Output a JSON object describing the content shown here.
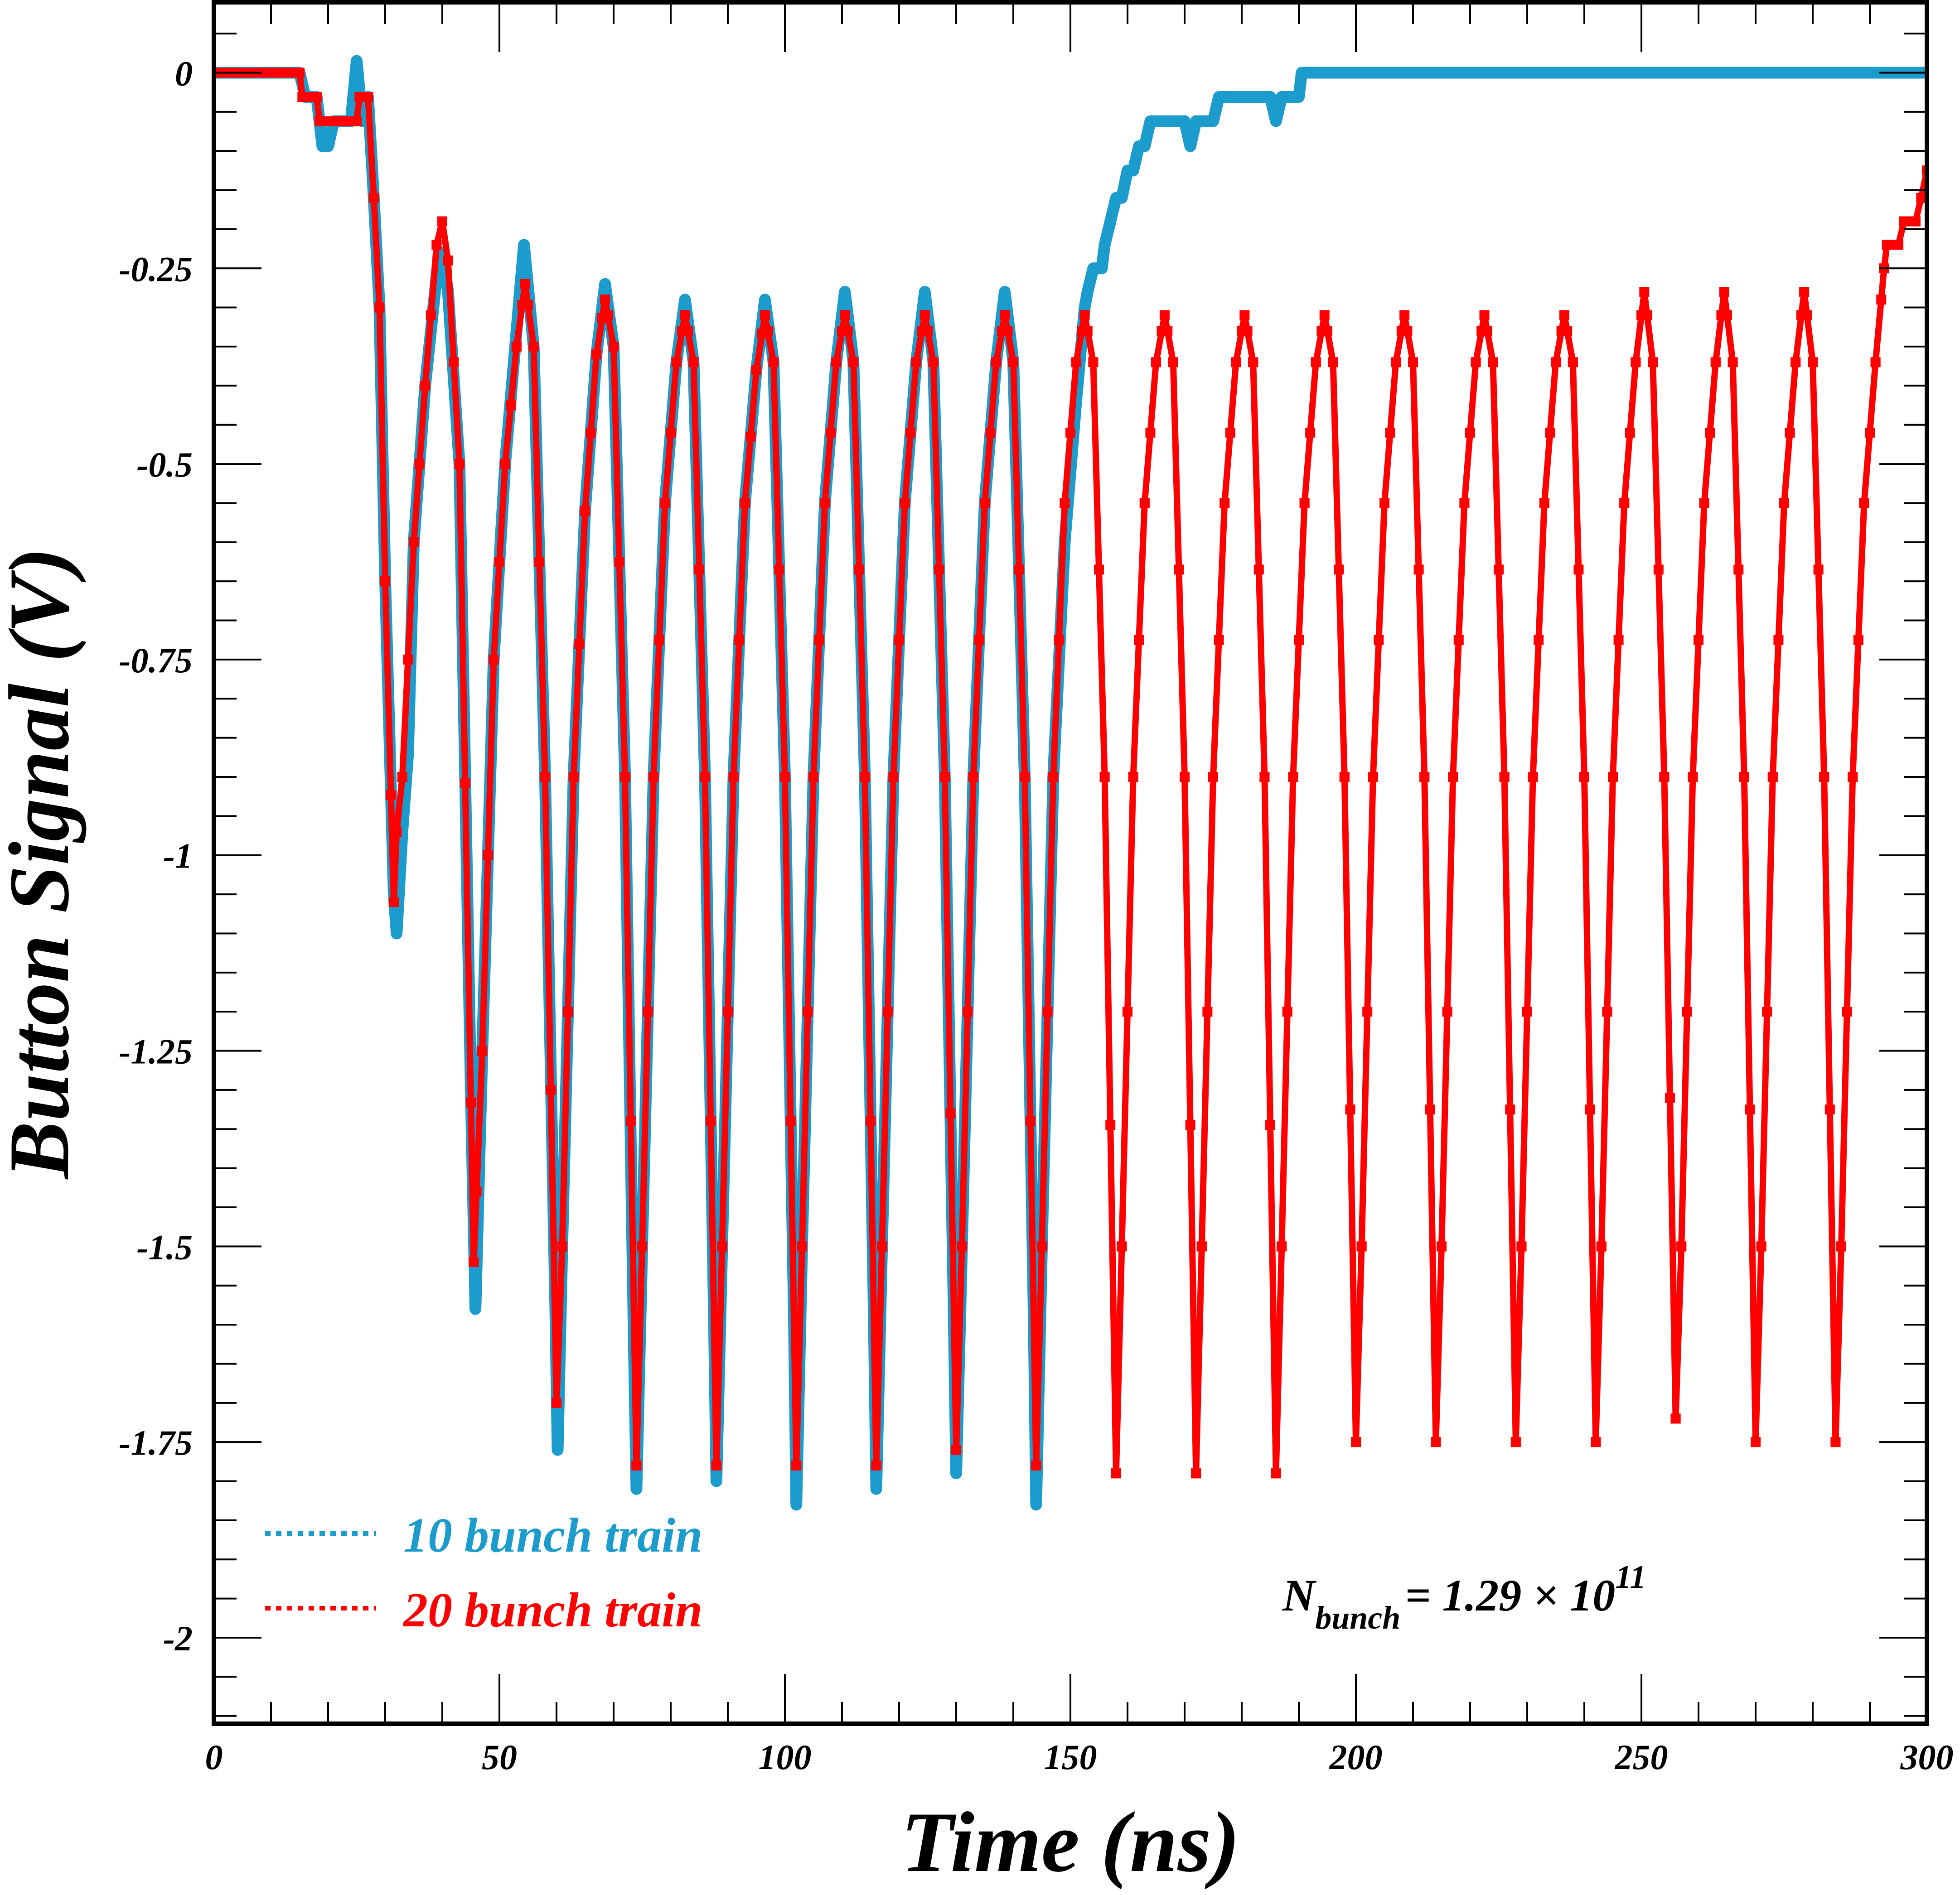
{
  "chart_data": {
    "type": "line",
    "title": "",
    "xlabel": "Time (ns)",
    "ylabel": "Button Signal (V)",
    "xlim": [
      0,
      300
    ],
    "ylim": [
      -2.11,
      0.09
    ],
    "x_ticks": [
      0,
      50,
      100,
      150,
      200,
      250,
      300
    ],
    "x_tick_labels": [
      "0",
      "50",
      "100",
      "150",
      "200",
      "250",
      "300"
    ],
    "x_minor_step": 10,
    "y_ticks": [
      0,
      -0.25,
      -0.5,
      -0.75,
      -1,
      -1.25,
      -1.5,
      -1.75,
      -2
    ],
    "y_tick_labels": [
      "0",
      "-0.25",
      "-0.5",
      "-0.75",
      "-1",
      "-1.25",
      "-1.5",
      "-1.75",
      "-2"
    ],
    "y_minor_step": 0.05,
    "grid": false,
    "legend": {
      "placement": "bottom-left",
      "entries": [
        {
          "label": "10 bunch train",
          "color": "#1c9bcd"
        },
        {
          "label": "20 bunch train",
          "color": "#ff0000"
        }
      ]
    },
    "annotation": {
      "symbol": "N",
      "subscript": "bunch",
      "text": "= 1.29 × 10",
      "superscript": "11",
      "placement": "bottom-right"
    },
    "series": [
      {
        "name": "10 bunch train",
        "color": "#1c9bcd",
        "markers": false,
        "points": [
          [
            0,
            0
          ],
          [
            15,
            0
          ],
          [
            16,
            -0.031
          ],
          [
            18,
            -0.031
          ],
          [
            19,
            -0.094
          ],
          [
            20,
            -0.094
          ],
          [
            21,
            -0.062
          ],
          [
            24,
            -0.062
          ],
          [
            25,
            0.015
          ],
          [
            26,
            -0.062
          ],
          [
            27,
            -0.031
          ],
          [
            28,
            -0.16
          ],
          [
            29,
            -0.3
          ],
          [
            30,
            -0.65
          ],
          [
            31.5,
            -1.05
          ],
          [
            32,
            -1.1
          ],
          [
            33,
            -0.97
          ],
          [
            34,
            -0.87
          ],
          [
            35,
            -0.6
          ],
          [
            37,
            -0.4
          ],
          [
            39,
            -0.26
          ],
          [
            40,
            -0.23
          ],
          [
            41,
            -0.28
          ],
          [
            43,
            -0.5
          ],
          [
            45,
            -1.3
          ],
          [
            45.8,
            -1.58
          ],
          [
            47,
            -1.25
          ],
          [
            49,
            -0.75
          ],
          [
            51,
            -0.5
          ],
          [
            53,
            -0.33
          ],
          [
            54.3,
            -0.22
          ],
          [
            56,
            -0.35
          ],
          [
            58,
            -0.9
          ],
          [
            59.8,
            -1.58
          ],
          [
            60.2,
            -1.76
          ],
          [
            61,
            -1.5
          ],
          [
            63,
            -0.9
          ],
          [
            65,
            -0.56
          ],
          [
            67,
            -0.36
          ],
          [
            68.5,
            -0.27
          ],
          [
            70,
            -0.35
          ],
          [
            72,
            -0.9
          ],
          [
            73.5,
            -1.6
          ],
          [
            74,
            -1.81
          ],
          [
            75,
            -1.5
          ],
          [
            77,
            -0.9
          ],
          [
            79,
            -0.55
          ],
          [
            81,
            -0.37
          ],
          [
            82.5,
            -0.29
          ],
          [
            84,
            -0.37
          ],
          [
            86,
            -0.9
          ],
          [
            87.6,
            -1.6
          ],
          [
            88,
            -1.8
          ],
          [
            89,
            -1.5
          ],
          [
            91,
            -0.9
          ],
          [
            93,
            -0.55
          ],
          [
            95,
            -0.38
          ],
          [
            96.5,
            -0.29
          ],
          [
            98,
            -0.37
          ],
          [
            100,
            -0.9
          ],
          [
            101.6,
            -1.6
          ],
          [
            102,
            -1.83
          ],
          [
            103,
            -1.5
          ],
          [
            105,
            -0.9
          ],
          [
            107,
            -0.55
          ],
          [
            109,
            -0.37
          ],
          [
            110.5,
            -0.28
          ],
          [
            112,
            -0.37
          ],
          [
            114,
            -0.9
          ],
          [
            115.6,
            -1.6
          ],
          [
            116,
            -1.81
          ],
          [
            117,
            -1.5
          ],
          [
            119,
            -0.9
          ],
          [
            121,
            -0.55
          ],
          [
            123,
            -0.37
          ],
          [
            124.5,
            -0.28
          ],
          [
            126,
            -0.37
          ],
          [
            128,
            -0.9
          ],
          [
            129.6,
            -1.6
          ],
          [
            130,
            -1.79
          ],
          [
            131,
            -1.5
          ],
          [
            133,
            -0.9
          ],
          [
            135,
            -0.55
          ],
          [
            137,
            -0.37
          ],
          [
            138.5,
            -0.28
          ],
          [
            140,
            -0.37
          ],
          [
            142,
            -0.9
          ],
          [
            143.6,
            -1.6
          ],
          [
            144,
            -1.83
          ],
          [
            145,
            -1.5
          ],
          [
            147,
            -0.9
          ],
          [
            149,
            -0.6
          ],
          [
            151,
            -0.42
          ],
          [
            152.5,
            -0.3
          ],
          [
            153,
            -0.28
          ],
          [
            154,
            -0.25
          ],
          [
            155.5,
            -0.25
          ],
          [
            156,
            -0.22
          ],
          [
            157,
            -0.19
          ],
          [
            158,
            -0.16
          ],
          [
            159,
            -0.16
          ],
          [
            160,
            -0.125
          ],
          [
            161,
            -0.125
          ],
          [
            162,
            -0.094
          ],
          [
            163,
            -0.094
          ],
          [
            164,
            -0.062
          ],
          [
            170,
            -0.062
          ],
          [
            171,
            -0.094
          ],
          [
            172,
            -0.062
          ],
          [
            175,
            -0.062
          ],
          [
            176,
            -0.031
          ],
          [
            185,
            -0.031
          ],
          [
            186,
            -0.062
          ],
          [
            187,
            -0.031
          ],
          [
            190,
            -0.031
          ],
          [
            190.5,
            0
          ],
          [
            300,
            0
          ]
        ]
      },
      {
        "name": "20 bunch train",
        "color": "#ff0000",
        "markers": true,
        "marker_interval_ns": 1,
        "points": [
          [
            0,
            0
          ],
          [
            15,
            0
          ],
          [
            15.5,
            -0.031
          ],
          [
            18,
            -0.031
          ],
          [
            18.5,
            -0.062
          ],
          [
            25,
            -0.062
          ],
          [
            25.5,
            -0.031
          ],
          [
            27,
            -0.031
          ],
          [
            28,
            -0.16
          ],
          [
            29,
            -0.3
          ],
          [
            30,
            -0.65
          ],
          [
            31.5,
            -1.06
          ],
          [
            32,
            -0.97
          ],
          [
            33,
            -0.9
          ],
          [
            35,
            -0.6
          ],
          [
            37,
            -0.4
          ],
          [
            39,
            -0.22
          ],
          [
            40,
            -0.19
          ],
          [
            41,
            -0.24
          ],
          [
            43,
            -0.5
          ],
          [
            45.5,
            -1.52
          ],
          [
            47,
            -1.25
          ],
          [
            49,
            -0.75
          ],
          [
            51,
            -0.5
          ],
          [
            53,
            -0.35
          ],
          [
            54.5,
            -0.27
          ],
          [
            56,
            -0.35
          ],
          [
            58,
            -0.9
          ],
          [
            60,
            -1.7
          ],
          [
            61,
            -1.5
          ],
          [
            63,
            -0.9
          ],
          [
            65,
            -0.56
          ],
          [
            67,
            -0.36
          ],
          [
            68.5,
            -0.29
          ],
          [
            70,
            -0.35
          ],
          [
            72,
            -0.9
          ],
          [
            74,
            -1.78
          ],
          [
            75,
            -1.5
          ],
          [
            77,
            -0.9
          ],
          [
            79,
            -0.55
          ],
          [
            81,
            -0.37
          ],
          [
            82.5,
            -0.31
          ],
          [
            84,
            -0.37
          ],
          [
            86,
            -0.9
          ],
          [
            88,
            -1.78
          ],
          [
            89,
            -1.5
          ],
          [
            91,
            -0.9
          ],
          [
            93,
            -0.55
          ],
          [
            95,
            -0.38
          ],
          [
            96.5,
            -0.31
          ],
          [
            98,
            -0.37
          ],
          [
            100,
            -0.9
          ],
          [
            102,
            -1.78
          ],
          [
            103,
            -1.5
          ],
          [
            105,
            -0.9
          ],
          [
            107,
            -0.55
          ],
          [
            109,
            -0.37
          ],
          [
            110.5,
            -0.31
          ],
          [
            112,
            -0.37
          ],
          [
            114,
            -0.9
          ],
          [
            116,
            -1.78
          ],
          [
            117,
            -1.5
          ],
          [
            119,
            -0.9
          ],
          [
            121,
            -0.55
          ],
          [
            123,
            -0.37
          ],
          [
            124.5,
            -0.31
          ],
          [
            126,
            -0.37
          ],
          [
            128,
            -0.9
          ],
          [
            130,
            -1.76
          ],
          [
            131,
            -1.5
          ],
          [
            133,
            -0.9
          ],
          [
            135,
            -0.55
          ],
          [
            137,
            -0.37
          ],
          [
            138.5,
            -0.31
          ],
          [
            140,
            -0.37
          ],
          [
            142,
            -0.9
          ],
          [
            144,
            -1.78
          ],
          [
            145,
            -1.5
          ],
          [
            147,
            -0.9
          ],
          [
            149,
            -0.55
          ],
          [
            151,
            -0.37
          ],
          [
            152.5,
            -0.31
          ],
          [
            154,
            -0.37
          ],
          [
            156,
            -0.9
          ],
          [
            158,
            -1.79
          ],
          [
            159,
            -1.5
          ],
          [
            161,
            -0.9
          ],
          [
            163,
            -0.55
          ],
          [
            165,
            -0.37
          ],
          [
            166.5,
            -0.31
          ],
          [
            168,
            -0.37
          ],
          [
            170,
            -0.9
          ],
          [
            172,
            -1.79
          ],
          [
            173,
            -1.5
          ],
          [
            175,
            -0.9
          ],
          [
            177,
            -0.55
          ],
          [
            179,
            -0.37
          ],
          [
            180.5,
            -0.31
          ],
          [
            182,
            -0.37
          ],
          [
            184,
            -0.9
          ],
          [
            186,
            -1.79
          ],
          [
            187,
            -1.5
          ],
          [
            189,
            -0.9
          ],
          [
            191,
            -0.55
          ],
          [
            193,
            -0.37
          ],
          [
            194.5,
            -0.31
          ],
          [
            196,
            -0.37
          ],
          [
            198,
            -0.9
          ],
          [
            200,
            -1.75
          ],
          [
            201,
            -1.5
          ],
          [
            203,
            -0.9
          ],
          [
            205,
            -0.55
          ],
          [
            207,
            -0.37
          ],
          [
            208.5,
            -0.31
          ],
          [
            210,
            -0.37
          ],
          [
            212,
            -0.9
          ],
          [
            214,
            -1.75
          ],
          [
            215,
            -1.5
          ],
          [
            217,
            -0.9
          ],
          [
            219,
            -0.55
          ],
          [
            221,
            -0.37
          ],
          [
            222.5,
            -0.31
          ],
          [
            224,
            -0.37
          ],
          [
            226,
            -0.9
          ],
          [
            228,
            -1.75
          ],
          [
            229,
            -1.5
          ],
          [
            231,
            -0.9
          ],
          [
            233,
            -0.55
          ],
          [
            235,
            -0.37
          ],
          [
            236.5,
            -0.31
          ],
          [
            238,
            -0.37
          ],
          [
            240,
            -0.9
          ],
          [
            242,
            -1.75
          ],
          [
            243,
            -1.5
          ],
          [
            245,
            -0.9
          ],
          [
            247,
            -0.55
          ],
          [
            249,
            -0.37
          ],
          [
            250.5,
            -0.28
          ],
          [
            252,
            -0.37
          ],
          [
            254,
            -0.9
          ],
          [
            256,
            -1.72
          ],
          [
            257,
            -1.5
          ],
          [
            259,
            -0.9
          ],
          [
            261,
            -0.55
          ],
          [
            263,
            -0.37
          ],
          [
            264.5,
            -0.28
          ],
          [
            266,
            -0.37
          ],
          [
            268,
            -0.9
          ],
          [
            270,
            -1.75
          ],
          [
            271,
            -1.5
          ],
          [
            273,
            -0.9
          ],
          [
            275,
            -0.55
          ],
          [
            277,
            -0.37
          ],
          [
            278.5,
            -0.28
          ],
          [
            280,
            -0.37
          ],
          [
            282,
            -0.9
          ],
          [
            284,
            -1.75
          ],
          [
            285,
            -1.5
          ],
          [
            287,
            -0.9
          ],
          [
            289,
            -0.55
          ],
          [
            291,
            -0.37
          ],
          [
            292.5,
            -0.25
          ],
          [
            293,
            -0.22
          ],
          [
            295,
            -0.22
          ],
          [
            296,
            -0.19
          ],
          [
            298,
            -0.19
          ],
          [
            299,
            -0.16
          ],
          [
            300,
            -0.125
          ]
        ]
      }
    ]
  }
}
